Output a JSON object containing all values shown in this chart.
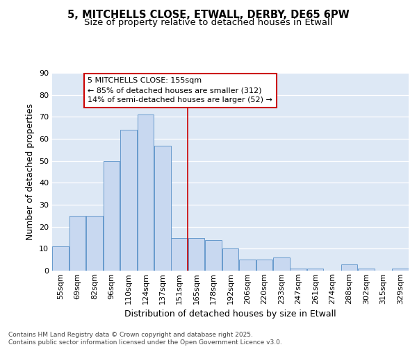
{
  "title1": "5, MITCHELLS CLOSE, ETWALL, DERBY, DE65 6PW",
  "title2": "Size of property relative to detached houses in Etwall",
  "xlabel": "Distribution of detached houses by size in Etwall",
  "ylabel": "Number of detached properties",
  "bar_labels": [
    "55sqm",
    "69sqm",
    "82sqm",
    "96sqm",
    "110sqm",
    "124sqm",
    "137sqm",
    "151sqm",
    "165sqm",
    "178sqm",
    "192sqm",
    "206sqm",
    "220sqm",
    "233sqm",
    "247sqm",
    "261sqm",
    "274sqm",
    "288sqm",
    "302sqm",
    "315sqm",
    "329sqm"
  ],
  "bar_values": [
    11,
    25,
    25,
    50,
    64,
    71,
    57,
    15,
    15,
    14,
    10,
    5,
    5,
    6,
    1,
    1,
    0,
    3,
    1,
    0,
    1
  ],
  "bar_color": "#c8d8f0",
  "bar_edge_color": "#6699cc",
  "vline_x": 7.5,
  "vline_color": "#cc0000",
  "annotation_title": "5 MITCHELLS CLOSE: 155sqm",
  "annotation_line1": "← 85% of detached houses are smaller (312)",
  "annotation_line2": "14% of semi-detached houses are larger (52) →",
  "annotation_box_color": "#ffffff",
  "annotation_box_edge": "#cc0000",
  "ylim": [
    0,
    90
  ],
  "yticks": [
    0,
    10,
    20,
    30,
    40,
    50,
    60,
    70,
    80,
    90
  ],
  "background_color": "#dde8f5",
  "footer": "Contains HM Land Registry data © Crown copyright and database right 2025.\nContains public sector information licensed under the Open Government Licence v3.0.",
  "grid_color": "#ffffff",
  "title_fontsize": 10.5,
  "subtitle_fontsize": 9.5,
  "axis_label_fontsize": 9,
  "tick_fontsize": 8,
  "annotation_fontsize": 8,
  "footer_fontsize": 6.5
}
